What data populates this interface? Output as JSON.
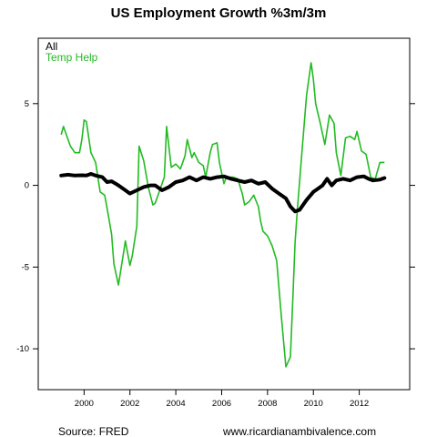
{
  "chart_data": {
    "type": "line",
    "title": "US Employment Growth %3m/3m",
    "xlabel": "",
    "ylabel": "",
    "xlim": [
      1998.0,
      2014.2
    ],
    "ylim": [
      -12.5,
      9.0
    ],
    "x_ticks": [
      2000,
      2002,
      2004,
      2006,
      2008,
      2010,
      2012
    ],
    "x_tick_labels": [
      "2000",
      "2002",
      "2004",
      "2006",
      "2008",
      "2010",
      "2012"
    ],
    "y_ticks": [
      5,
      0,
      -5,
      -10
    ],
    "y_tick_labels": [
      "5",
      "0",
      "-5",
      "-10"
    ],
    "grid": false,
    "legend_position": "top-left",
    "series": [
      {
        "name": "All",
        "color": "#000000",
        "x": [
          1999.0,
          1999.3,
          1999.6,
          1999.9,
          2000.1,
          2000.3,
          2000.5,
          2000.8,
          2001.0,
          2001.2,
          2001.5,
          2001.8,
          2002.0,
          2002.3,
          2002.6,
          2002.9,
          2003.1,
          2003.4,
          2003.7,
          2004.0,
          2004.3,
          2004.6,
          2004.9,
          2005.2,
          2005.5,
          2005.8,
          2006.1,
          2006.4,
          2006.7,
          2007.0,
          2007.3,
          2007.6,
          2007.9,
          2008.2,
          2008.5,
          2008.8,
          2009.0,
          2009.2,
          2009.4,
          2009.7,
          2010.0,
          2010.2,
          2010.4,
          2010.6,
          2010.8,
          2011.0,
          2011.3,
          2011.6,
          2011.9,
          2012.2,
          2012.4,
          2012.6,
          2012.9,
          2013.1
        ],
        "y": [
          0.6,
          0.65,
          0.6,
          0.62,
          0.6,
          0.7,
          0.6,
          0.5,
          0.2,
          0.25,
          0.0,
          -0.3,
          -0.5,
          -0.3,
          -0.1,
          0.0,
          0.0,
          -0.3,
          -0.1,
          0.2,
          0.3,
          0.5,
          0.3,
          0.5,
          0.4,
          0.5,
          0.55,
          0.4,
          0.3,
          0.2,
          0.3,
          0.1,
          0.2,
          -0.2,
          -0.5,
          -0.8,
          -1.3,
          -1.6,
          -1.5,
          -0.9,
          -0.4,
          -0.2,
          0.0,
          0.4,
          0.0,
          0.3,
          0.4,
          0.3,
          0.5,
          0.55,
          0.4,
          0.3,
          0.35,
          0.45
        ]
      },
      {
        "name": "Temp Help",
        "color": "#22bb22",
        "x": [
          1999.0,
          1999.1,
          1999.2,
          1999.4,
          1999.6,
          1999.8,
          1999.9,
          2000.0,
          2000.1,
          2000.3,
          2000.5,
          2000.7,
          2000.9,
          2001.0,
          2001.2,
          2001.3,
          2001.5,
          2001.7,
          2001.8,
          2002.0,
          2002.1,
          2002.3,
          2002.4,
          2002.6,
          2002.8,
          2003.0,
          2003.1,
          2003.3,
          2003.5,
          2003.6,
          2003.8,
          2004.0,
          2004.2,
          2004.4,
          2004.5,
          2004.7,
          2004.8,
          2005.0,
          2005.2,
          2005.3,
          2005.5,
          2005.6,
          2005.8,
          2005.9,
          2006.1,
          2006.2,
          2006.5,
          2006.7,
          2006.9,
          2007.0,
          2007.2,
          2007.4,
          2007.6,
          2007.7,
          2007.8,
          2008.0,
          2008.2,
          2008.4,
          2008.6,
          2008.8,
          2009.0,
          2009.1,
          2009.2,
          2009.3,
          2009.5,
          2009.7,
          2009.9,
          2010.0,
          2010.1,
          2010.3,
          2010.5,
          2010.7,
          2010.9,
          2011.0,
          2011.2,
          2011.4,
          2011.6,
          2011.8,
          2011.9,
          2012.1,
          2012.3,
          2012.5,
          2012.7,
          2012.9,
          2013.0,
          2013.1
        ],
        "y": [
          3.1,
          3.6,
          3.2,
          2.4,
          2.0,
          2.0,
          2.8,
          4.0,
          3.9,
          2.0,
          1.4,
          -0.4,
          -0.6,
          -1.4,
          -3.0,
          -4.8,
          -6.1,
          -4.3,
          -3.4,
          -4.9,
          -4.3,
          -2.5,
          2.4,
          1.5,
          -0.1,
          -1.2,
          -1.1,
          -0.3,
          0.5,
          3.6,
          1.1,
          1.3,
          1.0,
          1.8,
          2.8,
          1.7,
          2.0,
          1.4,
          1.2,
          0.5,
          2.0,
          2.5,
          2.6,
          1.4,
          0.1,
          0.5,
          0.5,
          0.4,
          -0.5,
          -1.2,
          -1.0,
          -0.6,
          -1.3,
          -2.2,
          -2.8,
          -3.1,
          -3.7,
          -4.6,
          -8.0,
          -11.1,
          -10.5,
          -7.0,
          -3.5,
          -1.5,
          2.0,
          5.5,
          7.5,
          6.5,
          5.0,
          3.8,
          2.5,
          4.3,
          3.8,
          2.0,
          0.6,
          2.9,
          3.0,
          2.8,
          3.3,
          2.1,
          1.9,
          0.5,
          0.4,
          1.4,
          1.4,
          1.4
        ]
      }
    ]
  },
  "footer": {
    "source": "Source: FRED",
    "website": "www.ricardianambivalence.com"
  }
}
